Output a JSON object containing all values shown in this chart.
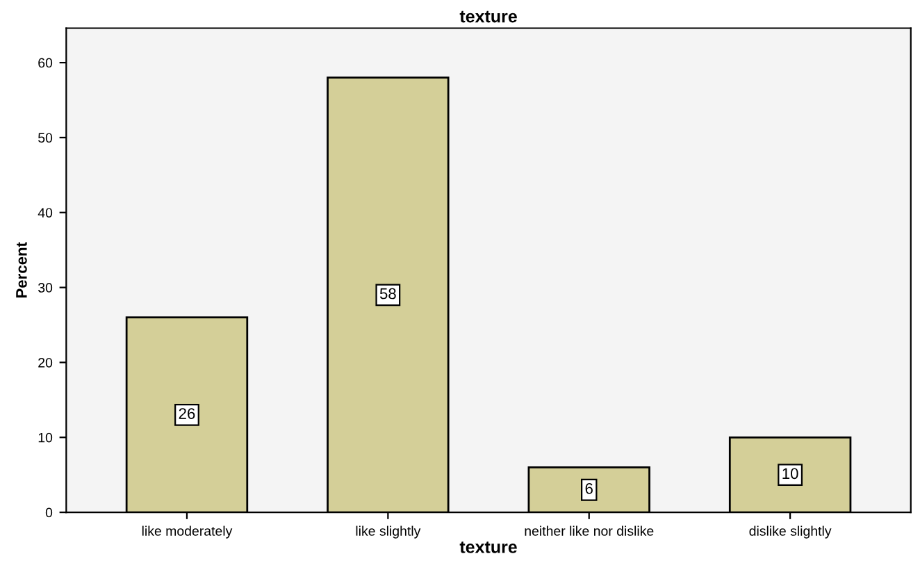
{
  "chart_data": {
    "type": "bar",
    "title": "texture",
    "xlabel": "texture",
    "ylabel": "Percent",
    "categories": [
      "like moderately",
      "like slightly",
      "neither like nor dislike",
      "dislike slightly"
    ],
    "values": [
      26,
      58,
      6,
      10
    ],
    "color": "#d4cf98",
    "ylim": [
      0,
      64.6
    ],
    "yticks": [
      0,
      10,
      20,
      30,
      40,
      50,
      60
    ],
    "grid": false,
    "data_labels": true
  }
}
